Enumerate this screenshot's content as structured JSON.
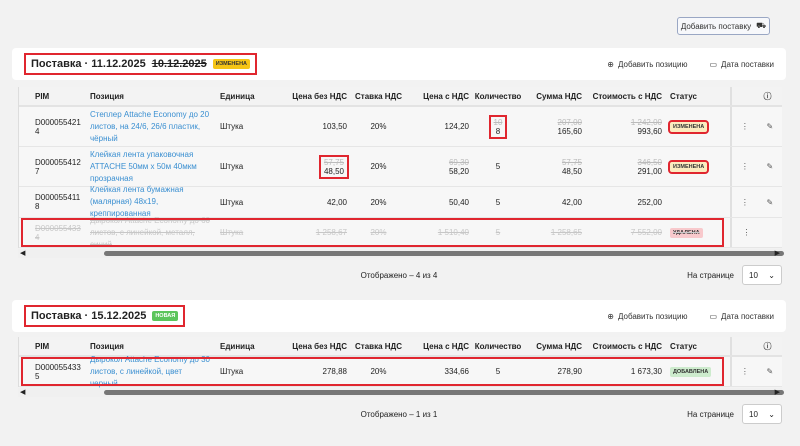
{
  "top": {
    "add_delivery": "Добавить поставку"
  },
  "columns": [
    "PIM",
    "Позиция",
    "Единица",
    "Цена без НДС",
    "Ставка НДС",
    "Цена с НДС",
    "Количество",
    "Сумма НДС",
    "Стоимость с НДС",
    "Статус"
  ],
  "actions": {
    "add_position": "Добавить позицию",
    "delivery_date": "Дата поставки"
  },
  "sections": [
    {
      "title": "Поставка · 11.12.2025",
      "old_date": "10.12.2025",
      "badge": "Изменена",
      "badge_class": "b-chg",
      "rows": [
        {
          "pim": "D000055421 4",
          "name": "Степлер Attache Economy до 20 листов, на 24/6, 26/6 пластик, чёрный",
          "unit": "Штука",
          "price": "103,50",
          "vat": "20%",
          "price_vat": "124,20",
          "qty_old": "10",
          "qty": "8",
          "vat_sum_old": "207,00",
          "vat_sum": "165,60",
          "total_old": "1 242,00",
          "total": "993,60",
          "status": "Изменена",
          "status_class": "b-chg2",
          "hl_qty": true
        },
        {
          "pim": "D000055412 7",
          "name": "Клейкая лента упаковочная ATTACHE 50мм х 50м 40мкм прозрачная",
          "unit": "Штука",
          "price_old": "57,75",
          "price": "48,50",
          "vat": "20%",
          "price_vat_old": "69,30",
          "price_vat": "58,20",
          "qty": "5",
          "vat_sum_old": "57,75",
          "vat_sum": "48,50",
          "total_old": "346,50",
          "total": "291,00",
          "status": "Изменена",
          "status_class": "b-chg2",
          "hl_price": true
        },
        {
          "pim": "D000055411 8",
          "name": "Клейкая лента бумажная (малярная) 48x19, креппированная",
          "unit": "Штука",
          "price": "42,00",
          "vat": "20%",
          "price_vat": "50,40",
          "qty": "5",
          "vat_sum": "42,00",
          "total": "252,00"
        },
        {
          "pim": "D000055433 4",
          "name": "Дырокол Attache Economy до 60 листов, с линейкой, металл, синий",
          "unit": "Штука",
          "price": "1 258,67",
          "vat": "20%",
          "price_vat": "1 510,40",
          "qty": "5",
          "vat_sum": "1 258,65",
          "total": "7 552,00",
          "status": "Удалена",
          "status_class": "b-del",
          "deleted": true
        }
      ],
      "shown": "Отображено – 4 из 4"
    },
    {
      "title": "Поставка · 15.12.2025",
      "badge": "Новая",
      "badge_class": "b-new",
      "rows": [
        {
          "pim": "D000055433 5",
          "name": "Дырокол Attache Economy до 30 листов, с линейкой, цвет черный",
          "unit": "Штука",
          "price": "278,88",
          "vat": "20%",
          "price_vat": "334,66",
          "qty": "5",
          "vat_sum": "278,90",
          "total": "1 673,30",
          "status": "Добавлена",
          "status_class": "b-add",
          "added": true
        }
      ],
      "shown": "Отображено – 1 из 1"
    }
  ],
  "pagination": {
    "per_page_label": "На странице",
    "per_page": "10"
  }
}
